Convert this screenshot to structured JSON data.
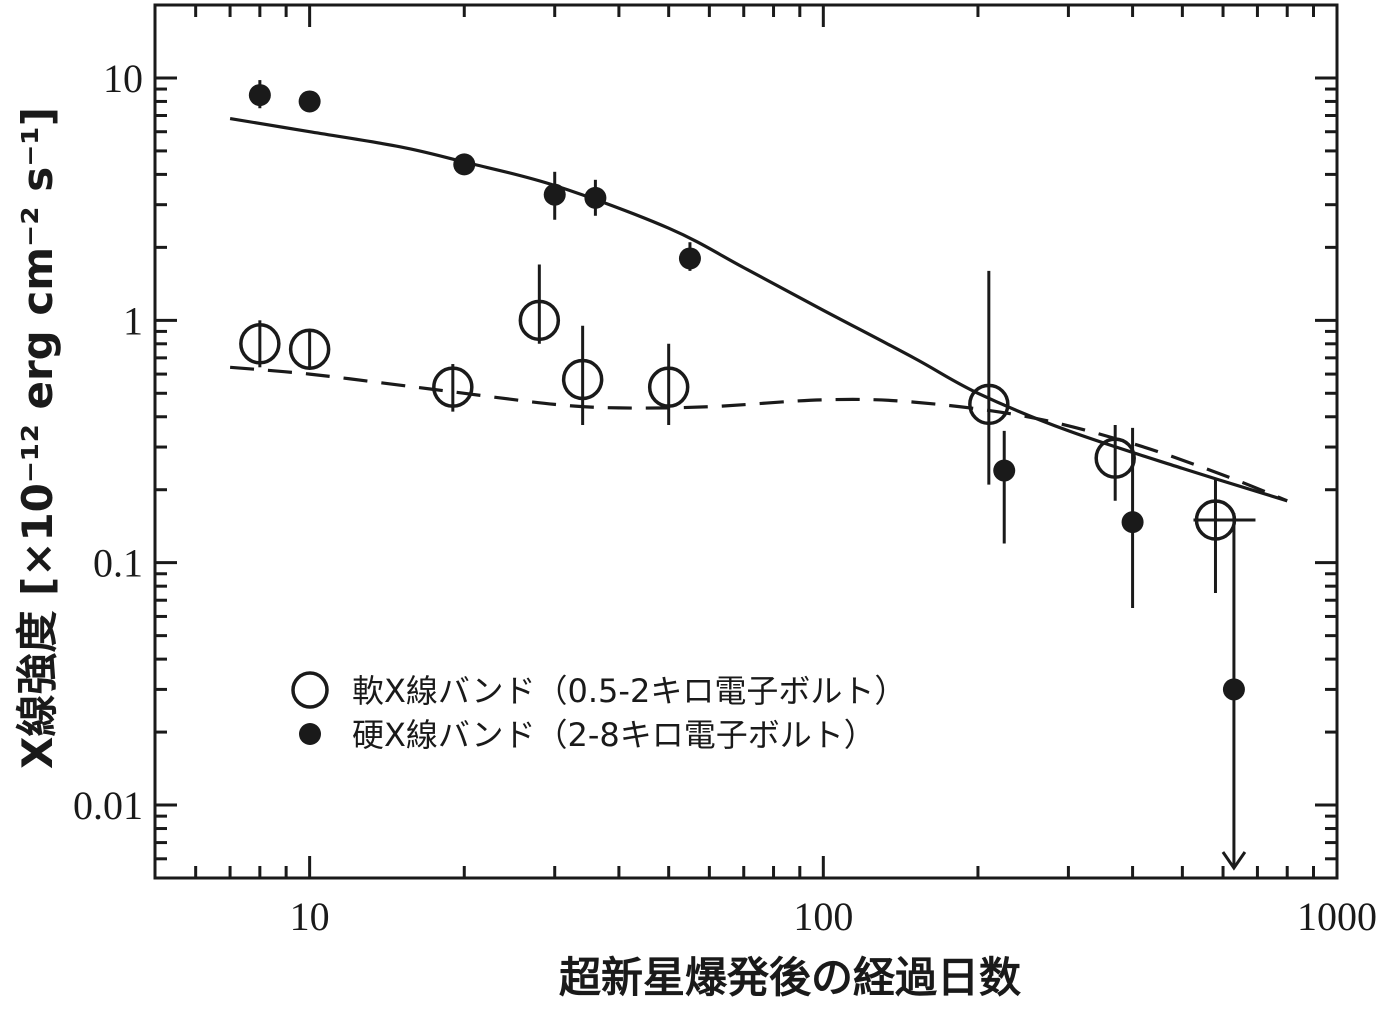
{
  "chart_data": {
    "type": "scatter",
    "xlabel": "超新星爆発後の経過日数",
    "ylabel": "X線強度 [×10⁻¹² erg cm⁻² s⁻¹]",
    "xscale": "log",
    "yscale": "log",
    "xlim": [
      5,
      1000
    ],
    "ylim": [
      0.005,
      20
    ],
    "x_ticks": [
      {
        "value": 10,
        "label": "10"
      },
      {
        "value": 100,
        "label": "100"
      },
      {
        "value": 1000,
        "label": "1000"
      }
    ],
    "y_ticks": [
      {
        "value": 10,
        "label": "10"
      },
      {
        "value": 1,
        "label": "1"
      },
      {
        "value": 0.1,
        "label": "0.1"
      },
      {
        "value": 0.01,
        "label": "0.01"
      }
    ],
    "legend_position": "bottom-left",
    "colors": {
      "ink": "#1a1a1a",
      "background": "#ffffff"
    },
    "series": [
      {
        "name": "軟X線バンド（0.5-2キロ電子ボルト）",
        "marker": "open-circle",
        "points": [
          {
            "x": 8,
            "y": 0.8,
            "ylo": 0.64,
            "yhi": 1.0
          },
          {
            "x": 10,
            "y": 0.76,
            "ylo": 0.64,
            "yhi": 0.9
          },
          {
            "x": 19,
            "y": 0.53,
            "ylo": 0.42,
            "yhi": 0.66
          },
          {
            "x": 28,
            "y": 1.0,
            "ylo": 0.8,
            "yhi": 1.7
          },
          {
            "x": 34,
            "y": 0.57,
            "ylo": 0.37,
            "yhi": 0.95
          },
          {
            "x": 50,
            "y": 0.53,
            "ylo": 0.37,
            "yhi": 0.8
          },
          {
            "x": 210,
            "y": 0.45,
            "ylo": 0.21,
            "yhi": 1.6
          },
          {
            "x": 370,
            "y": 0.27,
            "ylo": 0.18,
            "yhi": 0.37
          },
          {
            "x": 580,
            "y": 0.15,
            "ylo": 0.075,
            "yhi": 0.22
          }
        ]
      },
      {
        "name": "硬X線バンド（2-8キロ電子ボルト）",
        "marker": "filled-circle",
        "points": [
          {
            "x": 8,
            "y": 8.5,
            "ylo": 7.5,
            "yhi": 9.8
          },
          {
            "x": 10,
            "y": 8.0,
            "ylo": 7.6,
            "yhi": 8.5
          },
          {
            "x": 20,
            "y": 4.4,
            "ylo": 4.1,
            "yhi": 4.7
          },
          {
            "x": 30,
            "y": 3.3,
            "ylo": 2.6,
            "yhi": 4.1
          },
          {
            "x": 36,
            "y": 3.2,
            "ylo": 2.7,
            "yhi": 3.8
          },
          {
            "x": 55,
            "y": 1.8,
            "ylo": 1.6,
            "yhi": 2.1
          },
          {
            "x": 225,
            "y": 0.24,
            "ylo": 0.12,
            "yhi": 0.35
          },
          {
            "x": 400,
            "y": 0.147,
            "ylo": 0.065,
            "yhi": 0.36
          },
          {
            "x": 630,
            "y": 0.03,
            "yhi": 0.16,
            "upper_limit": true,
            "limit_to": 0.0055
          }
        ]
      }
    ],
    "models": [
      {
        "style": "solid",
        "points": [
          [
            7,
            6.8
          ],
          [
            10,
            6.0
          ],
          [
            15,
            5.2
          ],
          [
            20,
            4.5
          ],
          [
            30,
            3.6
          ],
          [
            50,
            2.4
          ],
          [
            70,
            1.65
          ],
          [
            100,
            1.1
          ],
          [
            150,
            0.7
          ],
          [
            200,
            0.5
          ],
          [
            300,
            0.35
          ],
          [
            500,
            0.245
          ],
          [
            800,
            0.18
          ]
        ]
      },
      {
        "style": "dashed",
        "points": [
          [
            7,
            0.64
          ],
          [
            10,
            0.6
          ],
          [
            15,
            0.54
          ],
          [
            20,
            0.5
          ],
          [
            30,
            0.45
          ],
          [
            40,
            0.435
          ],
          [
            60,
            0.44
          ],
          [
            100,
            0.47
          ],
          [
            150,
            0.46
          ],
          [
            250,
            0.4
          ],
          [
            400,
            0.31
          ],
          [
            600,
            0.23
          ],
          [
            800,
            0.18
          ]
        ]
      }
    ]
  }
}
